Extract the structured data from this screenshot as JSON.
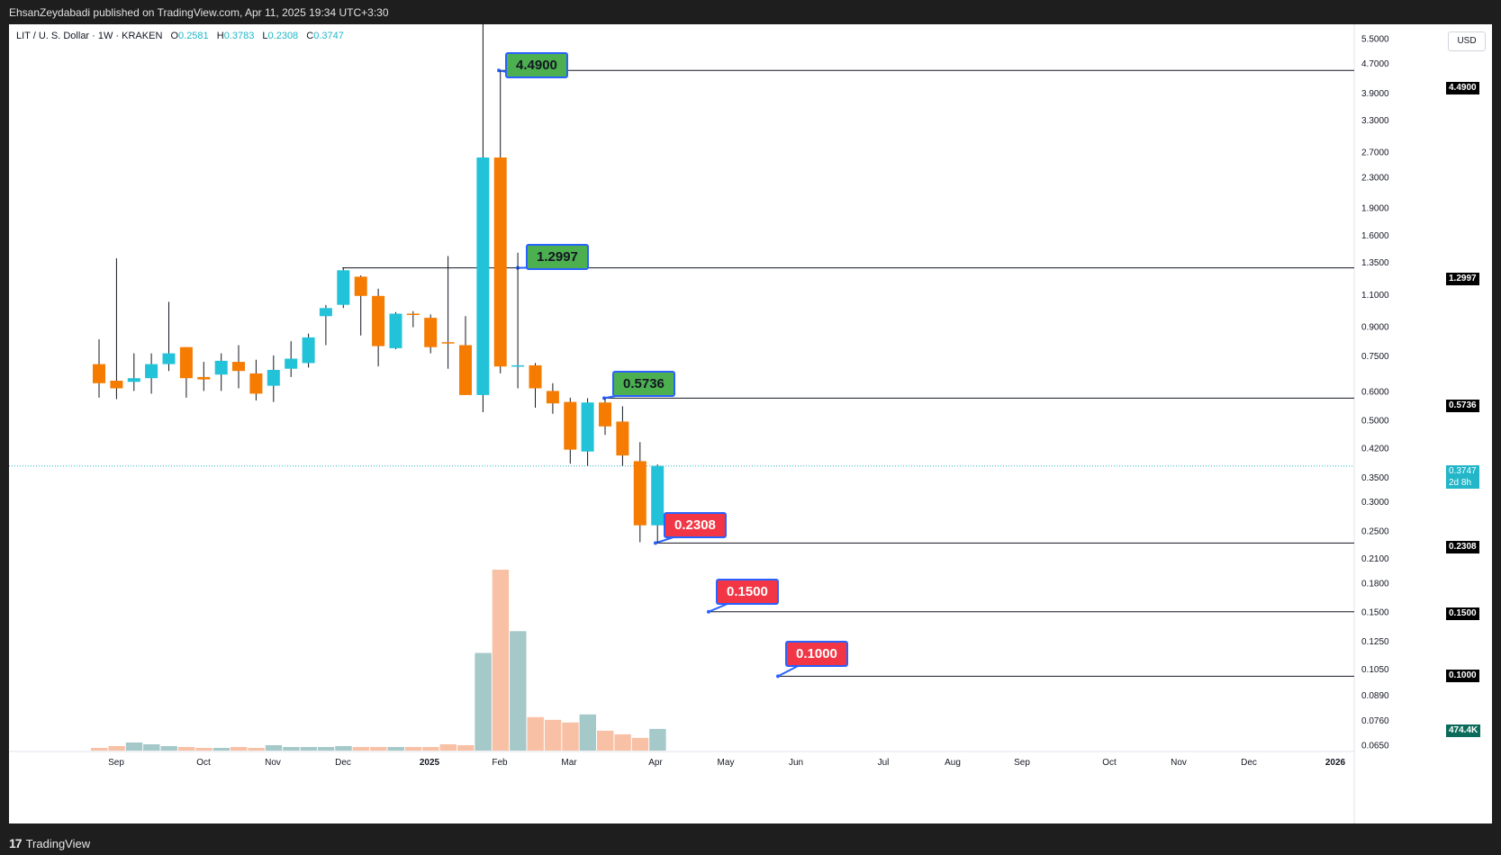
{
  "header": {
    "published_by": "EhsanZeydabadi published on TradingView.com, Apr 11, 2025 19:34 UTC+3:30"
  },
  "footer": {
    "logo_text": "TradingView",
    "logo_mark": "17"
  },
  "legend": {
    "symbol": "LIT / U. S. Dollar · 1W · KRAKEN",
    "open_label": "O",
    "open": "0.2581",
    "high_label": "H",
    "high": "0.3783",
    "low_label": "L",
    "low": "0.2308",
    "close_label": "C",
    "close": "0.3747"
  },
  "price_axis": {
    "currency": "USD",
    "current_price": "0.3747",
    "countdown": "2d 8h",
    "volume_tag": "474.4K"
  },
  "callouts": [
    {
      "text": "4.4900",
      "color": "green"
    },
    {
      "text": "1.2997",
      "color": "green"
    },
    {
      "text": "0.5736",
      "color": "green"
    },
    {
      "text": "0.2308",
      "color": "red"
    },
    {
      "text": "0.1500",
      "color": "red"
    },
    {
      "text": "0.1000",
      "color": "red"
    }
  ],
  "colors": {
    "up": "#22c3d8",
    "down": "#f57c00",
    "vol_up": "#a5c8c8",
    "vol_down": "#f8c0a4",
    "callout_green": "#4caf50",
    "callout_red": "#f23645",
    "callout_border": "#2962ff",
    "current_price": "#22b6c8"
  },
  "chart_data": {
    "type": "candlestick",
    "timeframe": "1W",
    "y_scale": "log",
    "ylim": [
      0.0627,
      6.0
    ],
    "x_labels": [
      "Sep",
      "Oct",
      "Nov",
      "Dec",
      "2025",
      "Feb",
      "Mar",
      "Apr",
      "May",
      "Jun",
      "Jul",
      "Aug",
      "Sep",
      "Oct",
      "Nov",
      "Dec",
      "2026"
    ],
    "y_ticks": [
      "5.5000",
      "4.7000",
      "3.9000",
      "3.3000",
      "2.7000",
      "2.3000",
      "1.9000",
      "1.6000",
      "1.3500",
      "1.1000",
      "0.9000",
      "0.7500",
      "0.6000",
      "0.5000",
      "0.4200",
      "0.3500",
      "0.3000",
      "0.2500",
      "0.2100",
      "0.1800",
      "0.1500",
      "0.1250",
      "0.1050",
      "0.0890",
      "0.0760",
      "0.0650"
    ],
    "candles": [
      {
        "o": 0.71,
        "h": 0.83,
        "l": 0.575,
        "c": 0.63
      },
      {
        "o": 0.64,
        "h": 1.38,
        "l": 0.57,
        "c": 0.61
      },
      {
        "o": 0.635,
        "h": 0.76,
        "l": 0.6,
        "c": 0.65
      },
      {
        "o": 0.65,
        "h": 0.76,
        "l": 0.59,
        "c": 0.71
      },
      {
        "o": 0.71,
        "h": 1.05,
        "l": 0.68,
        "c": 0.76
      },
      {
        "o": 0.79,
        "h": 0.79,
        "l": 0.575,
        "c": 0.65
      },
      {
        "o": 0.655,
        "h": 0.72,
        "l": 0.6,
        "c": 0.645
      },
      {
        "o": 0.665,
        "h": 0.76,
        "l": 0.6,
        "c": 0.725
      },
      {
        "o": 0.72,
        "h": 0.8,
        "l": 0.61,
        "c": 0.68
      },
      {
        "o": 0.67,
        "h": 0.73,
        "l": 0.565,
        "c": 0.59
      },
      {
        "o": 0.62,
        "h": 0.75,
        "l": 0.56,
        "c": 0.685
      },
      {
        "o": 0.69,
        "h": 0.82,
        "l": 0.655,
        "c": 0.735
      },
      {
        "o": 0.715,
        "h": 0.86,
        "l": 0.695,
        "c": 0.84
      },
      {
        "o": 0.96,
        "h": 1.03,
        "l": 0.8,
        "c": 1.01
      },
      {
        "o": 1.03,
        "h": 1.3,
        "l": 1.01,
        "c": 1.28
      },
      {
        "o": 1.23,
        "h": 1.24,
        "l": 0.85,
        "c": 1.09
      },
      {
        "o": 1.09,
        "h": 1.14,
        "l": 0.7,
        "c": 0.795
      },
      {
        "o": 0.785,
        "h": 0.985,
        "l": 0.78,
        "c": 0.975
      },
      {
        "o": 0.975,
        "h": 0.99,
        "l": 0.895,
        "c": 0.97
      },
      {
        "o": 0.95,
        "h": 0.97,
        "l": 0.76,
        "c": 0.79
      },
      {
        "o": 0.815,
        "h": 1.4,
        "l": 0.69,
        "c": 0.81
      },
      {
        "o": 0.8,
        "h": 0.96,
        "l": 0.585,
        "c": 0.585
      },
      {
        "o": 0.585,
        "h": 9.0,
        "l": 0.525,
        "c": 2.6
      },
      {
        "o": 2.6,
        "h": 4.49,
        "l": 0.67,
        "c": 0.7
      },
      {
        "o": 0.7,
        "h": 1.43,
        "l": 0.61,
        "c": 0.705
      },
      {
        "o": 0.705,
        "h": 0.715,
        "l": 0.54,
        "c": 0.61
      },
      {
        "o": 0.6,
        "h": 0.63,
        "l": 0.52,
        "c": 0.555
      },
      {
        "o": 0.56,
        "h": 0.575,
        "l": 0.38,
        "c": 0.415
      },
      {
        "o": 0.41,
        "h": 0.5736,
        "l": 0.375,
        "c": 0.558
      },
      {
        "o": 0.558,
        "h": 0.5736,
        "l": 0.455,
        "c": 0.48
      },
      {
        "o": 0.495,
        "h": 0.545,
        "l": 0.375,
        "c": 0.4
      },
      {
        "o": 0.386,
        "h": 0.435,
        "l": 0.232,
        "c": 0.258
      },
      {
        "o": 0.2581,
        "h": 0.3783,
        "l": 0.2308,
        "c": 0.3747
      }
    ],
    "volumes": [
      3,
      5,
      9,
      7,
      5,
      4,
      3,
      3,
      4,
      3,
      6,
      4,
      4,
      4,
      5,
      4,
      4,
      4,
      4,
      4,
      7,
      6,
      108,
      200,
      132,
      37,
      34,
      31,
      40,
      22,
      18,
      14,
      24
    ],
    "levels": [
      4.49,
      1.2997,
      0.5736,
      0.2308,
      0.15,
      0.1
    ]
  }
}
